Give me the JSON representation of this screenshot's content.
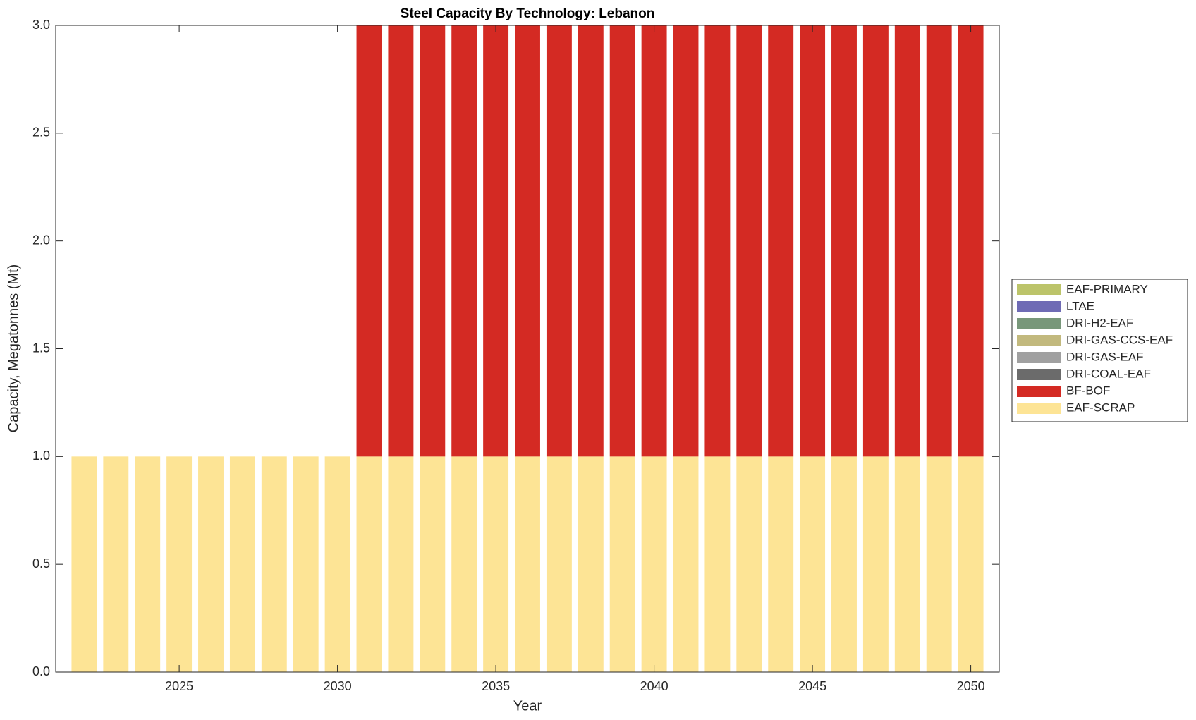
{
  "chart_data": {
    "type": "stacked_bar",
    "title": "Steel Capacity By Technology: Lebanon",
    "x_label": "Year",
    "y_label": "Capacity, Megatonnes (Mt)",
    "x": [
      2022,
      2023,
      2024,
      2025,
      2026,
      2027,
      2028,
      2029,
      2030,
      2031,
      2032,
      2033,
      2034,
      2035,
      2036,
      2037,
      2038,
      2039,
      2040,
      2041,
      2042,
      2043,
      2044,
      2045,
      2046,
      2047,
      2048,
      2049,
      2050
    ],
    "xlim": [
      2021.1,
      2050.9
    ],
    "xticks": [
      2025,
      2030,
      2035,
      2040,
      2045,
      2050
    ],
    "ylim": [
      0,
      3
    ],
    "yticks": [
      {
        "value": 0,
        "label": "0.0"
      },
      0.5,
      {
        "value": 1,
        "label": "1.0"
      },
      1.5,
      {
        "value": 2,
        "label": "2.0"
      },
      2.5,
      {
        "value": 3,
        "label": "3.0"
      }
    ],
    "legend": "outside-right",
    "series": [
      {
        "name": "EAF-SCRAP",
        "color": "#fde495",
        "values": [
          1,
          1,
          1,
          1,
          1,
          1,
          1,
          1,
          1,
          1,
          1,
          1,
          1,
          1,
          1,
          1,
          1,
          1,
          1,
          1,
          1,
          1,
          1,
          1,
          1,
          1,
          1,
          1,
          1
        ]
      },
      {
        "name": "BF-BOF",
        "color": "#d42a23",
        "values": [
          0,
          0,
          0,
          0,
          0,
          0,
          0,
          0,
          0,
          2,
          2,
          2,
          2,
          2,
          2,
          2,
          2,
          2,
          2,
          2,
          2,
          2,
          2,
          2,
          2,
          2,
          2,
          2,
          2
        ]
      },
      {
        "name": "DRI-COAL-EAF",
        "color": "#6b6b6b",
        "values": [
          0,
          0,
          0,
          0,
          0,
          0,
          0,
          0,
          0,
          0,
          0,
          0,
          0,
          0,
          0,
          0,
          0,
          0,
          0,
          0,
          0,
          0,
          0,
          0,
          0,
          0,
          0,
          0,
          0
        ]
      },
      {
        "name": "DRI-GAS-EAF",
        "color": "#a0a0a0",
        "values": [
          0,
          0,
          0,
          0,
          0,
          0,
          0,
          0,
          0,
          0,
          0,
          0,
          0,
          0,
          0,
          0,
          0,
          0,
          0,
          0,
          0,
          0,
          0,
          0,
          0,
          0,
          0,
          0,
          0
        ]
      },
      {
        "name": "DRI-GAS-CCS-EAF",
        "color": "#c2b97e",
        "values": [
          0,
          0,
          0,
          0,
          0,
          0,
          0,
          0,
          0,
          0,
          0,
          0,
          0,
          0,
          0,
          0,
          0,
          0,
          0,
          0,
          0,
          0,
          0,
          0,
          0,
          0,
          0,
          0,
          0
        ]
      },
      {
        "name": "DRI-H2-EAF",
        "color": "#78977a",
        "values": [
          0,
          0,
          0,
          0,
          0,
          0,
          0,
          0,
          0,
          0,
          0,
          0,
          0,
          0,
          0,
          0,
          0,
          0,
          0,
          0,
          0,
          0,
          0,
          0,
          0,
          0,
          0,
          0,
          0
        ]
      },
      {
        "name": "LTAE",
        "color": "#6f6bb5",
        "values": [
          0,
          0,
          0,
          0,
          0,
          0,
          0,
          0,
          0,
          0,
          0,
          0,
          0,
          0,
          0,
          0,
          0,
          0,
          0,
          0,
          0,
          0,
          0,
          0,
          0,
          0,
          0,
          0,
          0
        ]
      },
      {
        "name": "EAF-PRIMARY",
        "color": "#bcc46a",
        "values": [
          0,
          0,
          0,
          0,
          0,
          0,
          0,
          0,
          0,
          0,
          0,
          0,
          0,
          0,
          0,
          0,
          0,
          0,
          0,
          0,
          0,
          0,
          0,
          0,
          0,
          0,
          0,
          0,
          0
        ]
      }
    ]
  }
}
